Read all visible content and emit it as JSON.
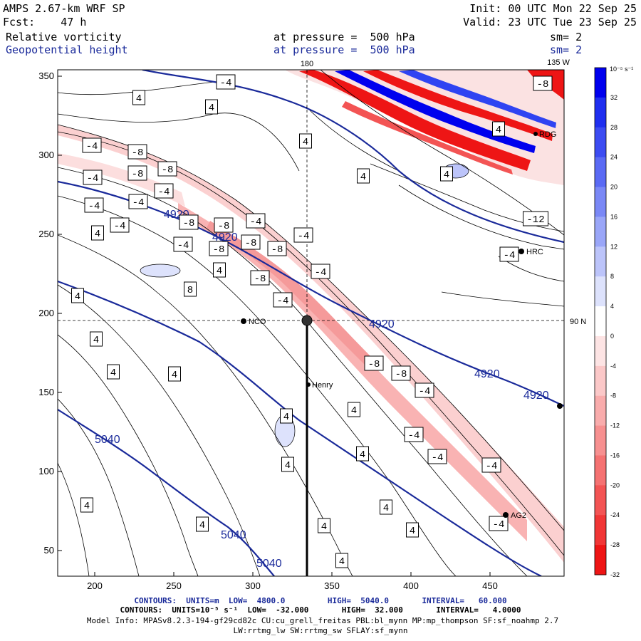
{
  "header": {
    "model": "AMPS 2.67-km WRF SP",
    "forecast": "Fcst:    47 h",
    "init": "Init: 00 UTC Mon 22 Sep 25",
    "valid": "Valid: 23 UTC Tue 23 Sep 25",
    "field1_name": "Relative vorticity",
    "field1_level": "at pressure =  500 hPa",
    "field1_sm": "sm= 2",
    "field2_name": "Geopotential height",
    "field2_level": "at pressure =  500 hPa",
    "field2_sm": "sm= 2"
  },
  "map": {
    "lon_label_top_180": "180",
    "lon_label_top_135w": "135 W",
    "lat_label_right": "90 N",
    "x_ticks": [
      "200",
      "250",
      "300",
      "350",
      "400",
      "450"
    ],
    "y_ticks": [
      "350",
      "300",
      "250",
      "200",
      "150",
      "100",
      "50"
    ],
    "stations": [
      {
        "name": "NCO"
      },
      {
        "name": "Henry"
      },
      {
        "name": "HRC"
      },
      {
        "name": "AG2"
      },
      {
        "name": "RDG"
      }
    ],
    "height_labels": [
      "4920",
      "4920",
      "4920",
      "4920",
      "4920",
      "5040",
      "5040",
      "5040"
    ],
    "vorticity_labels": [
      "-4",
      "4",
      "-8",
      "8",
      "-12"
    ]
  },
  "colorbar": {
    "unit": "10⁻⁵ s⁻¹",
    "ticks": [
      "32",
      "28",
      "24",
      "20",
      "16",
      "12",
      "8",
      "4",
      "0",
      "-4",
      "-8",
      "-12",
      "-16",
      "-20",
      "-24",
      "-28",
      "-32"
    ],
    "colors": [
      "#0000ee",
      "#1f2ff0",
      "#3c4cf2",
      "#5a6af4",
      "#7a88f6",
      "#9aa6f8",
      "#bcc4fa",
      "#dde2fc",
      "#ffffff",
      "#fde4e4",
      "#fbc8c8",
      "#f9acac",
      "#f79090",
      "#f57272",
      "#f35454",
      "#f13636",
      "#ee1515"
    ]
  },
  "footer": {
    "line1": "CONTOURS:  UNITS=m  LOW=  4800.0         HIGH=  5040.0       INTERVAL=   60.000",
    "line2": "CONTOURS:  UNITS=10⁻⁵ s⁻¹  LOW=  -32.000       HIGH=  32.000       INTERVAL=   4.0000",
    "line3": "Model Info: MPASv8.2.3-194-gf29cd82c CU:cu_grell_freitas PBL:bl_mynn MP:mp_thompson SF:sf_noahmp 2.7",
    "line4": "LW:rrtmg_lw SW:rrtmg_sw SFLAY:sf_mynn"
  }
}
